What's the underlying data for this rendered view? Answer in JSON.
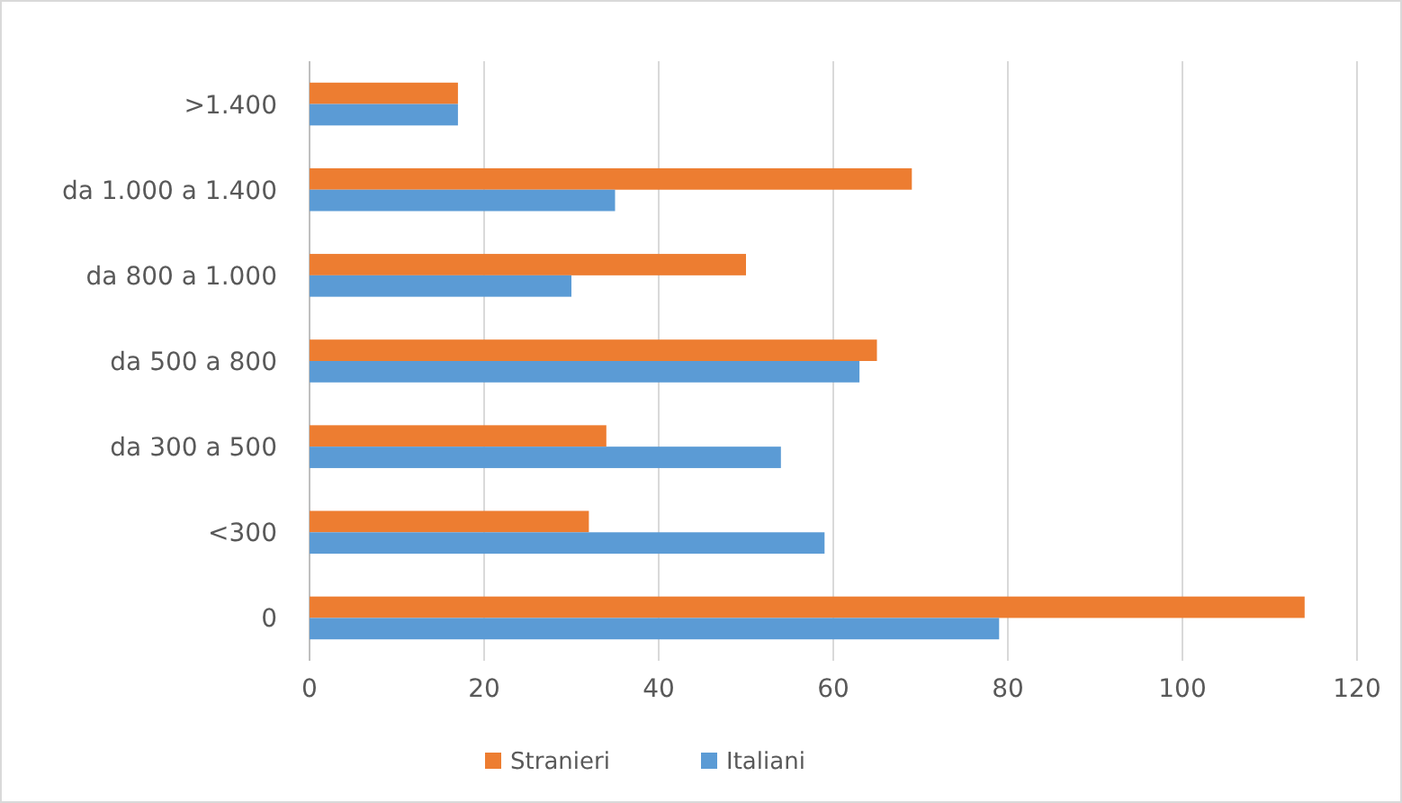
{
  "chart_data": {
    "type": "bar",
    "orientation": "horizontal",
    "categories": [
      ">1.400",
      "da 1.000 a 1.400",
      "da 800 a 1.000",
      "da 500 a 800",
      "da 300 a 500",
      "<300",
      "0"
    ],
    "series": [
      {
        "name": "Stranieri",
        "color": "#ed7d31",
        "values": [
          17,
          69,
          50,
          65,
          34,
          32,
          114
        ]
      },
      {
        "name": "Italiani",
        "color": "#5b9bd5",
        "values": [
          17,
          35,
          30,
          63,
          54,
          59,
          79
        ]
      }
    ],
    "xlim": [
      0,
      120
    ],
    "xticks": [
      0,
      20,
      40,
      60,
      80,
      100,
      120
    ],
    "grid": "x",
    "legend": "bottom"
  }
}
